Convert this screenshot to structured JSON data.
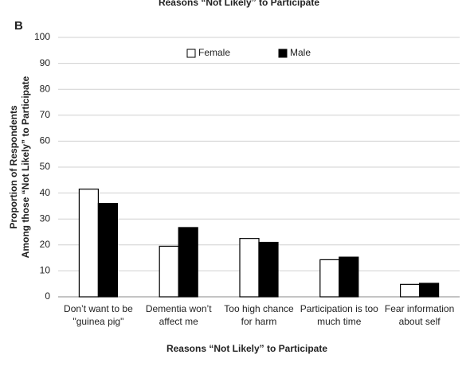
{
  "chart_data": {
    "type": "bar",
    "panel_label": "B",
    "title": "Reasons “Not Likely” to Participate",
    "x_label": "Reasons “Not Likely” to Participate",
    "y_label": [
      "Proportion of Respondents",
      "Among those “Not Likely” to Participate"
    ],
    "categories": [
      [
        "Don’t want to be",
        "\"guinea pig\""
      ],
      [
        "Dementia won’t",
        "affect me"
      ],
      [
        "Too high chance",
        "for harm"
      ],
      [
        "Participation is too",
        "much time"
      ],
      [
        "Fear information",
        "about self"
      ]
    ],
    "series": [
      {
        "name": "Female",
        "color": "#ffffff",
        "values": [
          41.5,
          19.5,
          22.5,
          14.3,
          4.8
        ]
      },
      {
        "name": "Male",
        "color": "#000000",
        "values": [
          36,
          26.7,
          21,
          15.3,
          5.2
        ]
      }
    ],
    "ylim": [
      0,
      100
    ],
    "yticks": [
      0,
      10,
      20,
      30,
      40,
      50,
      60,
      70,
      80,
      90,
      100
    ],
    "grid": true,
    "legend": "top"
  }
}
